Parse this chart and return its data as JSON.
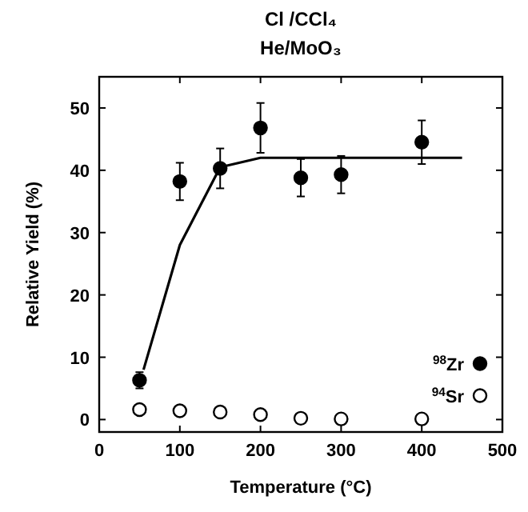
{
  "chart_data": {
    "type": "scatter",
    "title": "Cl /CCl₄",
    "subtitle": "He/MoO₃",
    "xlabel": "Temperature (°C)",
    "ylabel": "Relative Yield (%)",
    "xlim": [
      0,
      500
    ],
    "xticks": [
      0,
      100,
      200,
      300,
      400,
      500
    ],
    "ylim": [
      -2,
      55
    ],
    "yticks": [
      0,
      10,
      20,
      30,
      40,
      50
    ],
    "grid": false,
    "legend": "bottom right",
    "series": [
      {
        "name": "$^{98}$Zr",
        "color": "#000000",
        "marker": "circle",
        "x": [
          50,
          100,
          150,
          200,
          250,
          300,
          400
        ],
        "values": [
          6.3,
          38.2,
          40.3,
          46.8,
          38.8,
          39.3,
          44.5
        ],
        "errors": [
          1.3,
          3,
          3.2,
          4,
          3,
          3,
          3.5
        ]
      },
      {
        "name": "$^{94}$Sr",
        "color": "#ffffff",
        "marker": "circle",
        "x": [
          50,
          100,
          150,
          200,
          250,
          300,
          400
        ],
        "values": [
          1.6,
          1.4,
          1.2,
          0.8,
          0.2,
          0.1,
          0.1
        ]
      },
      {
        "type": "line",
        "color": "#000000",
        "marker": "none",
        "x": [
          55,
          100,
          150,
          200,
          450
        ],
        "values": [
          8,
          28,
          40.5,
          42,
          42
        ]
      }
    ]
  }
}
